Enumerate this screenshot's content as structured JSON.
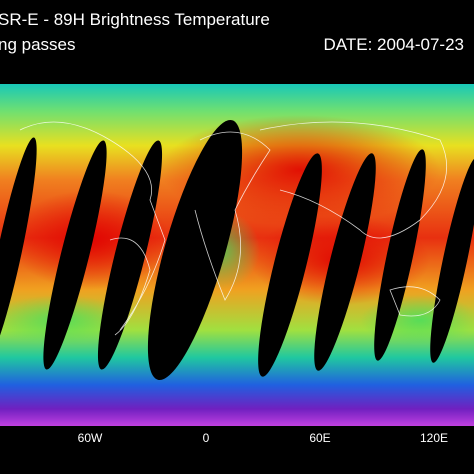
{
  "header": {
    "title": "SR-E - 89H Brightness Temperature",
    "subtitle": "ng passes",
    "date": "DATE: 2004-07-23"
  },
  "map": {
    "x_labels": [
      "60W",
      "0",
      "60E",
      "120E"
    ]
  }
}
